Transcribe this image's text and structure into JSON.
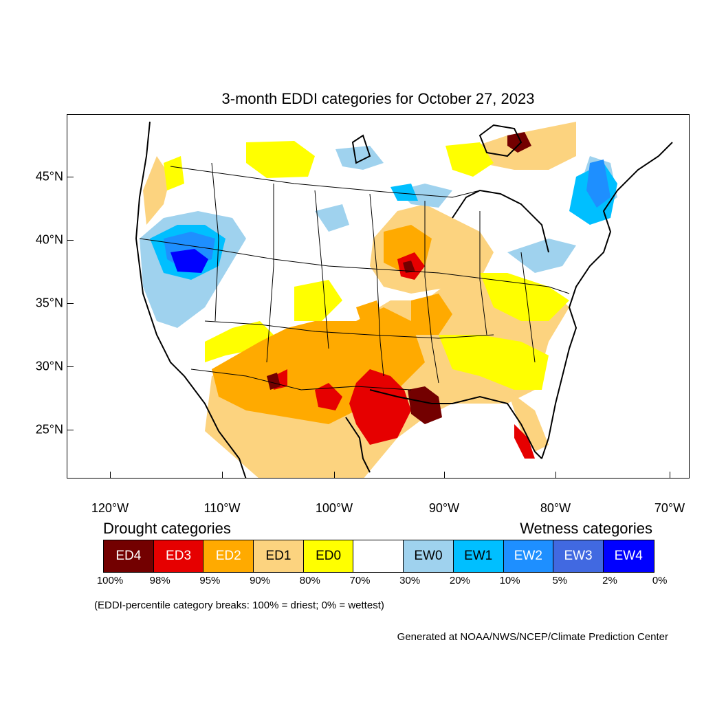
{
  "title": "3-month EDDI categories for October 27, 2023",
  "axes": {
    "lat_labels": [
      "45°N",
      "40°N",
      "35°N",
      "30°N",
      "25°N"
    ],
    "lon_labels": [
      "120°W",
      "110°W",
      "100°W",
      "90°W",
      "80°W",
      "70°W"
    ]
  },
  "legend": {
    "drought_heading": "Drought categories",
    "wetness_heading": "Wetness categories",
    "categories": [
      {
        "label": "ED4",
        "color": "#730000",
        "text_color": "#ffffff"
      },
      {
        "label": "ED3",
        "color": "#e60000",
        "text_color": "#ffffff"
      },
      {
        "label": "ED2",
        "color": "#ffaa00",
        "text_color": "#ffffff"
      },
      {
        "label": "ED1",
        "color": "#fcd37f",
        "text_color": "#000000"
      },
      {
        "label": "ED0",
        "color": "#ffff00",
        "text_color": "#000000"
      },
      {
        "label": "",
        "color": "#ffffff",
        "text_color": "#000000"
      },
      {
        "label": "EW0",
        "color": "#9fd2ee",
        "text_color": "#000000"
      },
      {
        "label": "EW1",
        "color": "#00bfff",
        "text_color": "#000000"
      },
      {
        "label": "EW2",
        "color": "#1e8fff",
        "text_color": "#ffffff"
      },
      {
        "label": "EW3",
        "color": "#4169e1",
        "text_color": "#ffffff"
      },
      {
        "label": "EW4",
        "color": "#0000ff",
        "text_color": "#ffffff"
      }
    ],
    "percent_breaks": [
      "100%",
      "98%",
      "95%",
      "90%",
      "80%",
      "70%",
      "30%",
      "20%",
      "10%",
      "5%",
      "2%",
      "0%"
    ],
    "note": "(EDDI-percentile category breaks: 100% = driest; 0% = wettest)"
  },
  "credit": "Generated at NOAA/NWS/NCEP/Climate Prediction Center"
}
